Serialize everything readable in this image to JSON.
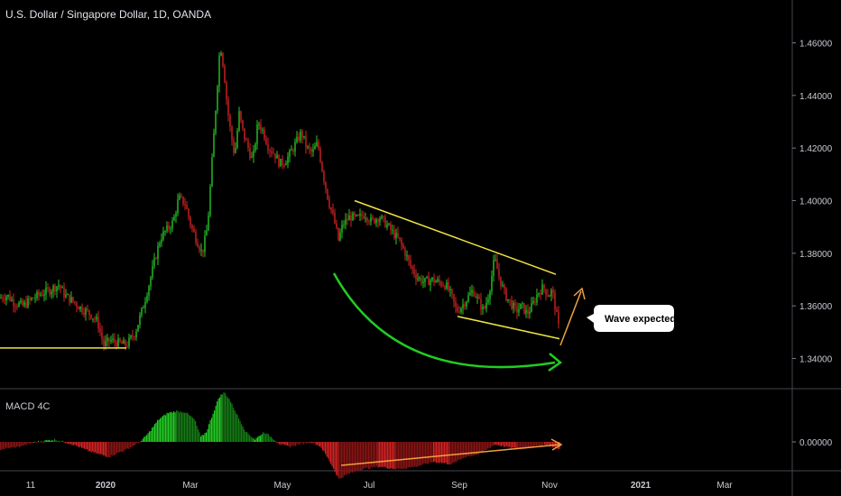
{
  "header": {
    "title": "U.S. Dollar / Singapore Dollar, 1D, OANDA"
  },
  "macd": {
    "label": "MACD 4C",
    "tick_label": "0.00000"
  },
  "annotation": {
    "callout": "Wave expected"
  },
  "colors": {
    "up": "#26c826",
    "down": "#d32222",
    "yellow": "#f0e442",
    "orange": "#f0a040",
    "curve": "#22cc22",
    "grid": "#2a2e39"
  },
  "chart_data": {
    "type": "candlestick",
    "title": "U.S. Dollar / Singapore Dollar, 1D, OANDA",
    "y_ticks": [
      "1.46000",
      "1.44000",
      "1.42000",
      "1.40000",
      "1.38000",
      "1.36000",
      "1.34000"
    ],
    "y_tick_values": [
      1.46,
      1.44,
      1.42,
      1.4,
      1.38,
      1.36,
      1.34
    ],
    "ylim": [
      1.334,
      1.466
    ],
    "x_ticks": [
      {
        "label": "11",
        "bold": false
      },
      {
        "label": "2020",
        "bold": true
      },
      {
        "label": "Mar",
        "bold": false
      },
      {
        "label": "May",
        "bold": false
      },
      {
        "label": "Jul",
        "bold": false
      },
      {
        "label": "Sep",
        "bold": false
      },
      {
        "label": "Nov",
        "bold": false
      },
      {
        "label": "2021",
        "bold": true
      },
      {
        "label": "Mar",
        "bold": false
      }
    ],
    "price_path": [
      [
        0,
        1.363
      ],
      [
        8,
        1.364
      ],
      [
        15,
        1.3615
      ],
      [
        25,
        1.36
      ],
      [
        35,
        1.3625
      ],
      [
        45,
        1.3645
      ],
      [
        55,
        1.366
      ],
      [
        65,
        1.368
      ],
      [
        72,
        1.364
      ],
      [
        80,
        1.362
      ],
      [
        90,
        1.359
      ],
      [
        100,
        1.357
      ],
      [
        108,
        1.354
      ],
      [
        115,
        1.345
      ],
      [
        122,
        1.347
      ],
      [
        130,
        1.346
      ],
      [
        140,
        1.345
      ],
      [
        150,
        1.35
      ],
      [
        158,
        1.359
      ],
      [
        165,
        1.368
      ],
      [
        172,
        1.378
      ],
      [
        178,
        1.386
      ],
      [
        185,
        1.389
      ],
      [
        192,
        1.392
      ],
      [
        198,
        1.401
      ],
      [
        205,
        1.399
      ],
      [
        212,
        1.39
      ],
      [
        218,
        1.385
      ],
      [
        224,
        1.38
      ],
      [
        230,
        1.39
      ],
      [
        235,
        1.415
      ],
      [
        240,
        1.44
      ],
      [
        244,
        1.46
      ],
      [
        248,
        1.45
      ],
      [
        252,
        1.435
      ],
      [
        256,
        1.425
      ],
      [
        260,
        1.417
      ],
      [
        265,
        1.433
      ],
      [
        270,
        1.425
      ],
      [
        275,
        1.42
      ],
      [
        280,
        1.415
      ],
      [
        286,
        1.43
      ],
      [
        292,
        1.426
      ],
      [
        298,
        1.42
      ],
      [
        304,
        1.418
      ],
      [
        310,
        1.414
      ],
      [
        316,
        1.415
      ],
      [
        322,
        1.418
      ],
      [
        328,
        1.422
      ],
      [
        334,
        1.426
      ],
      [
        340,
        1.42
      ],
      [
        346,
        1.418
      ],
      [
        352,
        1.422
      ],
      [
        358,
        1.41
      ],
      [
        364,
        1.4
      ],
      [
        370,
        1.393
      ],
      [
        375,
        1.385
      ],
      [
        380,
        1.391
      ],
      [
        388,
        1.394
      ],
      [
        396,
        1.393
      ],
      [
        404,
        1.395
      ],
      [
        412,
        1.392
      ],
      [
        420,
        1.394
      ],
      [
        428,
        1.391
      ],
      [
        435,
        1.388
      ],
      [
        442,
        1.385
      ],
      [
        448,
        1.381
      ],
      [
        455,
        1.375
      ],
      [
        462,
        1.371
      ],
      [
        470,
        1.369
      ],
      [
        478,
        1.37
      ],
      [
        486,
        1.369
      ],
      [
        494,
        1.368
      ],
      [
        500,
        1.364
      ],
      [
        506,
        1.358
      ],
      [
        512,
        1.36
      ],
      [
        518,
        1.363
      ],
      [
        524,
        1.366
      ],
      [
        530,
        1.362
      ],
      [
        536,
        1.358
      ],
      [
        542,
        1.365
      ],
      [
        548,
        1.378
      ],
      [
        554,
        1.37
      ],
      [
        560,
        1.364
      ],
      [
        566,
        1.361
      ],
      [
        572,
        1.358
      ],
      [
        578,
        1.36
      ],
      [
        584,
        1.357
      ],
      [
        590,
        1.36
      ],
      [
        596,
        1.365
      ],
      [
        602,
        1.367
      ],
      [
        608,
        1.364
      ],
      [
        612,
        1.366
      ],
      [
        616,
        1.358
      ],
      [
        620,
        1.35
      ]
    ],
    "macd_profile": [
      [
        0,
        -0.15
      ],
      [
        20,
        -0.1
      ],
      [
        40,
        0.0
      ],
      [
        60,
        0.05
      ],
      [
        80,
        -0.05
      ],
      [
        100,
        -0.2
      ],
      [
        120,
        -0.3
      ],
      [
        140,
        -0.15
      ],
      [
        155,
        0.0
      ],
      [
        165,
        0.2
      ],
      [
        175,
        0.45
      ],
      [
        185,
        0.58
      ],
      [
        195,
        0.62
      ],
      [
        205,
        0.6
      ],
      [
        215,
        0.45
      ],
      [
        222,
        0.1
      ],
      [
        228,
        0.2
      ],
      [
        235,
        0.55
      ],
      [
        242,
        0.9
      ],
      [
        248,
        1.0
      ],
      [
        254,
        0.85
      ],
      [
        262,
        0.55
      ],
      [
        272,
        0.2
      ],
      [
        282,
        0.05
      ],
      [
        292,
        0.2
      ],
      [
        300,
        0.1
      ],
      [
        310,
        -0.05
      ],
      [
        320,
        -0.1
      ],
      [
        330,
        -0.05
      ],
      [
        345,
        0.0
      ],
      [
        355,
        -0.1
      ],
      [
        365,
        -0.4
      ],
      [
        375,
        -0.75
      ],
      [
        385,
        -0.65
      ],
      [
        400,
        -0.55
      ],
      [
        420,
        -0.5
      ],
      [
        440,
        -0.55
      ],
      [
        460,
        -0.5
      ],
      [
        480,
        -0.4
      ],
      [
        500,
        -0.45
      ],
      [
        515,
        -0.3
      ],
      [
        530,
        -0.25
      ],
      [
        548,
        -0.05
      ],
      [
        560,
        -0.1
      ],
      [
        575,
        -0.15
      ],
      [
        590,
        -0.1
      ],
      [
        605,
        -0.05
      ],
      [
        620,
        -0.15
      ]
    ],
    "drawings": {
      "support_line": {
        "from": [
          0,
          1.344
        ],
        "to": [
          140,
          1.344
        ]
      },
      "channel_upper": {
        "from": [
          393,
          1.4
        ],
        "to": [
          616,
          1.372
        ]
      },
      "channel_lower": {
        "from": [
          507,
          1.356
        ],
        "to": [
          620,
          1.3475
        ]
      }
    }
  }
}
